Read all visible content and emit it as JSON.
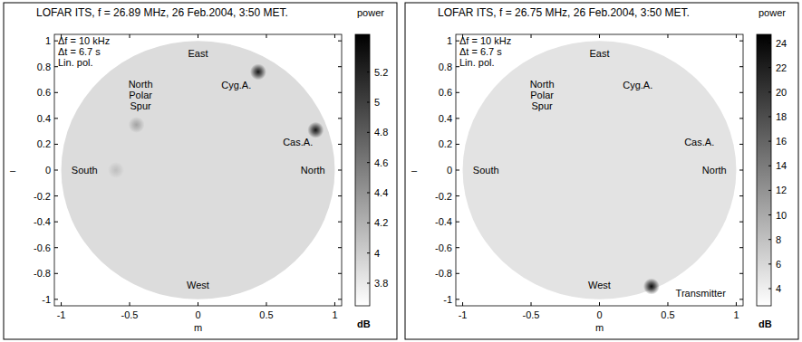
{
  "chart_data": [
    {
      "type": "heatmap",
      "title": "LOFAR ITS, f = 26.89 MHz, 26 Feb.2004, 3:50 MET.",
      "info_text": [
        "Δf = 10 kHz",
        "Δt = 6.7 s",
        "Lin. pol."
      ],
      "xlabel": "m",
      "ylabel": "–",
      "xlim": [
        -1.05,
        1.05
      ],
      "ylim": [
        -1.05,
        1.05
      ],
      "xticks": [
        -1,
        -0.5,
        0,
        0.5,
        1
      ],
      "yticks": [
        -1,
        -0.8,
        -0.6,
        -0.4,
        -0.2,
        0,
        0.2,
        0.4,
        0.6,
        0.8,
        1
      ],
      "sky_radius": 1,
      "background_power": 3.9,
      "sources": [
        {
          "x": 0.44,
          "y": 0.76,
          "power": 5.3
        },
        {
          "x": 0.86,
          "y": 0.31,
          "power": 5.3
        },
        {
          "x": -0.45,
          "y": 0.35,
          "power": 4.3
        },
        {
          "x": -0.6,
          "y": 0.0,
          "power": 4.1
        }
      ],
      "annotations": [
        {
          "text": "East",
          "x": 0.0,
          "y": 0.9
        },
        {
          "text": "Cyg.A.",
          "x": 0.28,
          "y": 0.66
        },
        {
          "text": "North Polar Spur",
          "x": -0.42,
          "y": 0.58
        },
        {
          "text": "Cas.A.",
          "x": 0.73,
          "y": 0.22
        },
        {
          "text": "South",
          "x": -0.83,
          "y": 0.0
        },
        {
          "text": "North",
          "x": 0.84,
          "y": 0.0
        },
        {
          "text": "West",
          "x": 0.0,
          "y": -0.89
        }
      ],
      "colorbar_label": "power",
      "colorbar_unit": "dB",
      "colorbar_range": [
        3.65,
        5.45
      ],
      "colorbar_ticks": [
        3.8,
        4,
        4.2,
        4.4,
        4.6,
        4.8,
        5,
        5.2
      ]
    },
    {
      "type": "heatmap",
      "title": "LOFAR ITS, f = 26.75 MHz, 26 Feb.2004, 3:50 MET.",
      "info_text": [
        "Δf = 10 kHz",
        "Δt = 6.7 s",
        "Lin. pol."
      ],
      "xlabel": "m",
      "ylabel": "–",
      "xlim": [
        -1.05,
        1.05
      ],
      "ylim": [
        -1.05,
        1.05
      ],
      "xticks": [
        -1,
        -0.5,
        0,
        0.5,
        1
      ],
      "yticks": [
        -1,
        -0.8,
        -0.6,
        -0.4,
        -0.2,
        0,
        0.2,
        0.4,
        0.6,
        0.8,
        1
      ],
      "sky_radius": 1,
      "background_power": 5,
      "sources": [
        {
          "x": 0.38,
          "y": -0.9,
          "power": 24
        }
      ],
      "annotations": [
        {
          "text": "East",
          "x": 0.0,
          "y": 0.9
        },
        {
          "text": "Cyg.A.",
          "x": 0.28,
          "y": 0.66
        },
        {
          "text": "North Polar Spur",
          "x": -0.42,
          "y": 0.58
        },
        {
          "text": "Cas.A.",
          "x": 0.73,
          "y": 0.22
        },
        {
          "text": "South",
          "x": -0.83,
          "y": 0.0
        },
        {
          "text": "North",
          "x": 0.84,
          "y": 0.0
        },
        {
          "text": "West",
          "x": 0.0,
          "y": -0.89
        },
        {
          "text": "Transmitter",
          "x": 0.74,
          "y": -0.95
        }
      ],
      "colorbar_label": "power",
      "colorbar_unit": "dB",
      "colorbar_range": [
        2.6,
        24.7
      ],
      "colorbar_ticks": [
        4,
        6,
        8,
        10,
        12,
        14,
        16,
        18,
        20,
        22,
        24
      ]
    }
  ]
}
